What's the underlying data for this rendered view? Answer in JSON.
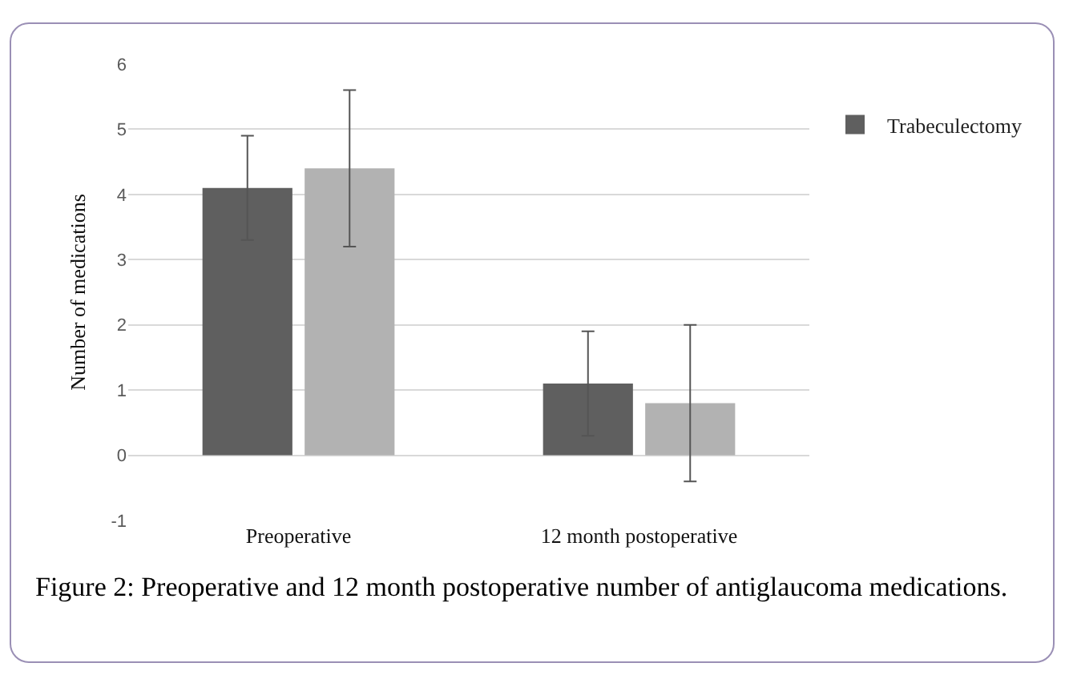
{
  "chart_data": {
    "type": "bar",
    "ylabel": "Number of medications",
    "categories": [
      "Preoperative",
      "12 month postoperative"
    ],
    "series": [
      {
        "name": "Trabeculectomy",
        "color": "#5f5f5f",
        "values": [
          4.1,
          1.1
        ],
        "errors": [
          0.8,
          0.8
        ]
      },
      {
        "color": "#b2b2b2",
        "values": [
          4.4,
          0.8
        ],
        "errors": [
          1.2,
          1.2
        ]
      }
    ],
    "ylim": [
      -1,
      6
    ],
    "yticks": [
      -1,
      0,
      1,
      2,
      3,
      4,
      5,
      6
    ],
    "grid": "y",
    "legend": "top right",
    "annotations": [
      "Figure 2: Preoperative and 12 month postoperative number of antiglaucoma medications."
    ]
  }
}
